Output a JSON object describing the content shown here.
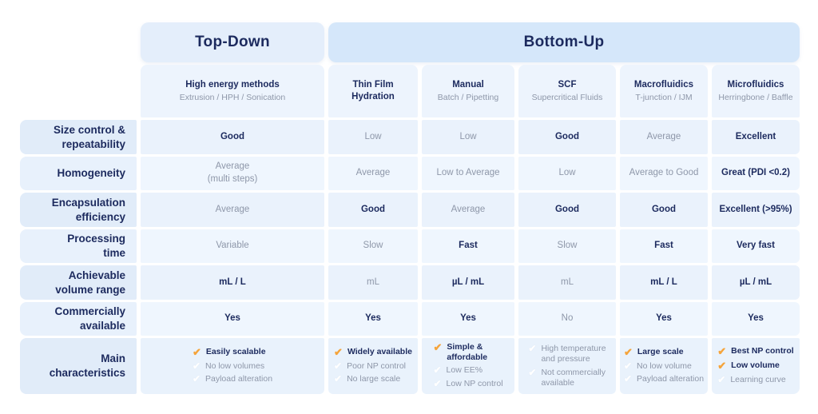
{
  "colors": {
    "navy": "#1c2a5e",
    "gray_text": "#8e97a9",
    "orange_check": "#f5a43b",
    "white_check": "#ffffff",
    "group_topdown_bg": "#e4eefb",
    "group_bottomup_bg": "#d5e7fa",
    "subheader_bg": "#edf4fd",
    "label_bg_a": "#e1ecf9",
    "label_bg_b": "#e8f1fc",
    "cell_bg_a": "#eaf2fc",
    "cell_bg_b": "#eff6fe",
    "char_bg": "#e9f2fc"
  },
  "table": {
    "groups": [
      {
        "key": "top-down",
        "label": "Top-Down"
      },
      {
        "key": "bottom-up",
        "label": "Bottom-Up"
      }
    ],
    "columns": [
      {
        "key": "high-energy-methods",
        "group": "Top-Down",
        "title": "High energy methods",
        "subtitle": "Extrusion / HPH / Sonication"
      },
      {
        "key": "thin-film-hydration",
        "group": "Bottom-Up",
        "title": "Thin Film\nHydration",
        "subtitle": ""
      },
      {
        "key": "manual",
        "group": "Bottom-Up",
        "title": "Manual",
        "subtitle": "Batch / Pipetting"
      },
      {
        "key": "scf",
        "group": "Bottom-Up",
        "title": "SCF",
        "subtitle": "Supercritical Fluids"
      },
      {
        "key": "macrofluidics",
        "group": "Bottom-Up",
        "title": "Macrofluidics",
        "subtitle": "T-junction / IJM"
      },
      {
        "key": "microfluidics",
        "group": "Bottom-Up",
        "title": "Microfluidics",
        "subtitle": "Herringbone /\nBaffle"
      }
    ],
    "rows": [
      {
        "key": "size-control-repeatability",
        "label": "Size control &\nrepeatability",
        "cells": [
          {
            "text": "Good",
            "strong": true
          },
          {
            "text": "Low",
            "strong": false
          },
          {
            "text": "Low",
            "strong": false
          },
          {
            "text": "Good",
            "strong": true
          },
          {
            "text": "Average",
            "strong": false
          },
          {
            "text": "Excellent",
            "strong": true
          }
        ]
      },
      {
        "key": "homogeneity",
        "label": "Homogeneity",
        "cells": [
          {
            "text": "Average\n(multi steps)",
            "strong": false
          },
          {
            "text": "Average",
            "strong": false
          },
          {
            "text": "Low to Average",
            "strong": false
          },
          {
            "text": "Low",
            "strong": false
          },
          {
            "text": "Average to Good",
            "strong": false
          },
          {
            "text": "Great (PDI <0.2)",
            "strong": true
          }
        ]
      },
      {
        "key": "encapsulation-efficiency",
        "label": "Encapsulation\nefficiency",
        "cells": [
          {
            "text": "Average",
            "strong": false
          },
          {
            "text": "Good",
            "strong": true
          },
          {
            "text": "Average",
            "strong": false
          },
          {
            "text": "Good",
            "strong": true
          },
          {
            "text": "Good",
            "strong": true
          },
          {
            "text": "Excellent (>95%)",
            "strong": true
          }
        ]
      },
      {
        "key": "processing-time",
        "label": "Processing\ntime",
        "cells": [
          {
            "text": "Variable",
            "strong": false
          },
          {
            "text": "Slow",
            "strong": false
          },
          {
            "text": "Fast",
            "strong": true
          },
          {
            "text": "Slow",
            "strong": false
          },
          {
            "text": "Fast",
            "strong": true
          },
          {
            "text": "Very fast",
            "strong": true
          }
        ]
      },
      {
        "key": "achievable-volume-range",
        "label": "Achievable\nvolume range",
        "cells": [
          {
            "text": "mL / L",
            "strong": true
          },
          {
            "text": "mL",
            "strong": false
          },
          {
            "text": "µL / mL",
            "strong": true
          },
          {
            "text": "mL",
            "strong": false
          },
          {
            "text": "mL / L",
            "strong": true
          },
          {
            "text": "µL / mL",
            "strong": true
          }
        ]
      },
      {
        "key": "commercially-available",
        "label": "Commercially\navailable",
        "cells": [
          {
            "text": "Yes",
            "strong": true
          },
          {
            "text": "Yes",
            "strong": true
          },
          {
            "text": "Yes",
            "strong": true
          },
          {
            "text": "No",
            "strong": false
          },
          {
            "text": "Yes",
            "strong": true
          },
          {
            "text": "Yes",
            "strong": true
          }
        ]
      }
    ],
    "characteristics": {
      "key": "main-characteristics",
      "label": "Main\ncharacteristics",
      "cells": [
        {
          "items": [
            {
              "text": "Easily scalable",
              "check": "orange",
              "strong": true
            },
            {
              "text": "No low volumes",
              "check": "white",
              "strong": false
            },
            {
              "text": "Payload alteration",
              "check": "white",
              "strong": false
            }
          ]
        },
        {
          "items": [
            {
              "text": "Widely available",
              "check": "orange",
              "strong": true
            },
            {
              "text": "Poor NP control",
              "check": "white",
              "strong": false
            },
            {
              "text": "No large scale",
              "check": "white",
              "strong": false
            }
          ]
        },
        {
          "items": [
            {
              "text": "Simple &\naffordable",
              "check": "orange",
              "strong": true
            },
            {
              "text": "Low EE%",
              "check": "white",
              "strong": false
            },
            {
              "text": "Low NP control",
              "check": "white",
              "strong": false
            }
          ]
        },
        {
          "items": [
            {
              "text": "High temperature\nand pressure",
              "check": "white",
              "strong": false
            },
            {
              "text": "Not commercially\navailable",
              "check": "white",
              "strong": false
            }
          ]
        },
        {
          "items": [
            {
              "text": "Large scale",
              "check": "orange",
              "strong": true
            },
            {
              "text": "No low volume",
              "check": "white",
              "strong": false
            },
            {
              "text": "Payload alteration",
              "check": "white",
              "strong": false
            }
          ]
        },
        {
          "items": [
            {
              "text": "Best NP control",
              "check": "orange",
              "strong": true
            },
            {
              "text": "Low volume",
              "check": "orange",
              "strong": true
            },
            {
              "text": "Learning curve",
              "check": "white",
              "strong": false
            }
          ]
        }
      ]
    }
  },
  "chart_data": {
    "type": "table",
    "column_groups": [
      "Top-Down",
      "Bottom-Up"
    ],
    "columns": [
      "High energy methods (Extrusion / HPH / Sonication)",
      "Thin Film Hydration",
      "Manual (Batch / Pipetting)",
      "SCF (Supercritical Fluids)",
      "Macrofluidics (T-junction / IJM)",
      "Microfluidics (Herringbone / Baffle)"
    ],
    "rows": [
      {
        "label": "Size control & repeatability",
        "values": [
          "Good",
          "Low",
          "Low",
          "Good",
          "Average",
          "Excellent"
        ]
      },
      {
        "label": "Homogeneity",
        "values": [
          "Average (multi steps)",
          "Average",
          "Low to Average",
          "Low",
          "Average to Good",
          "Great (PDI <0.2)"
        ]
      },
      {
        "label": "Encapsulation efficiency",
        "values": [
          "Average",
          "Good",
          "Average",
          "Good",
          "Good",
          "Excellent (>95%)"
        ]
      },
      {
        "label": "Processing time",
        "values": [
          "Variable",
          "Slow",
          "Fast",
          "Slow",
          "Fast",
          "Very fast"
        ]
      },
      {
        "label": "Achievable volume range",
        "values": [
          "mL / L",
          "mL",
          "µL / mL",
          "mL",
          "mL / L",
          "µL / mL"
        ]
      },
      {
        "label": "Commercially available",
        "values": [
          "Yes",
          "Yes",
          "Yes",
          "No",
          "Yes",
          "Yes"
        ]
      },
      {
        "label": "Main characteristics",
        "values": [
          "✔ Easily scalable; No low volumes; Payload alteration",
          "✔ Widely available; Poor NP control; No large scale",
          "✔ Simple & affordable; Low EE%; Low NP control",
          "High temperature and pressure; Not commercially available",
          "✔ Large scale; No low volume; Payload alteration",
          "✔ Best NP control; ✔ Low volume; Learning curve"
        ]
      }
    ]
  }
}
